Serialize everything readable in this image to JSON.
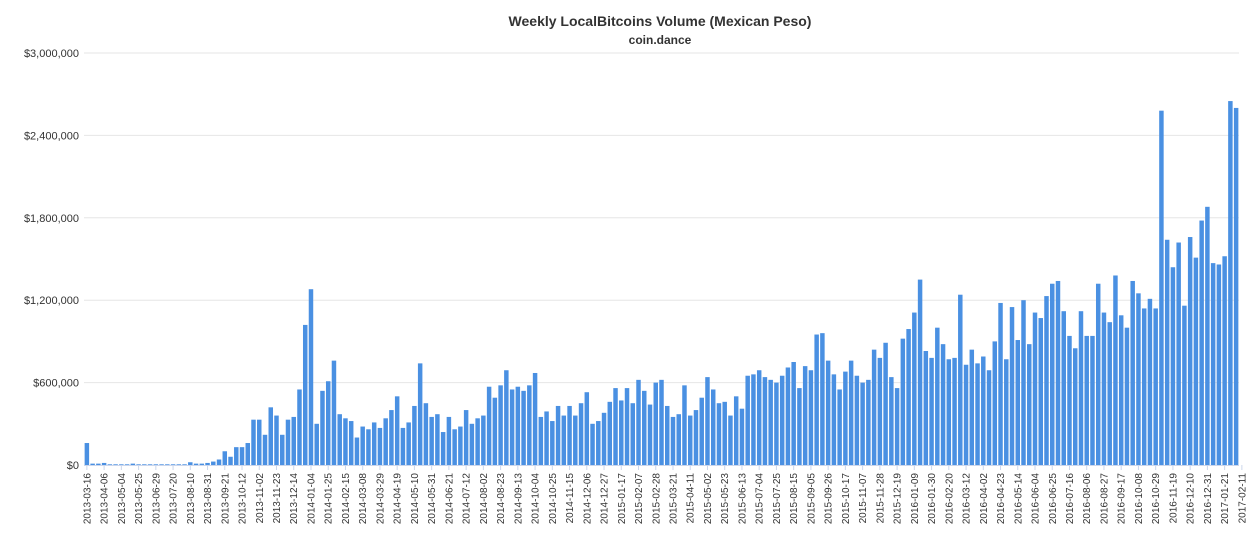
{
  "chart_data": {
    "type": "bar",
    "title": "Weekly LocalBitcoins Volume (Mexican Peso)",
    "subtitle": "coin.dance",
    "xlabel": "",
    "ylabel": "",
    "ylim": [
      0,
      3000000
    ],
    "yticks": [
      0,
      600000,
      1200000,
      1800000,
      2400000,
      3000000
    ],
    "ytick_labels": [
      "$0",
      "$600,000",
      "$1,200,000",
      "$1,800,000",
      "$2,400,000",
      "$3,000,000"
    ],
    "grid": true,
    "legend": "none",
    "bar_color": "#4a90e2",
    "start_date": "2013-03-16",
    "tick_labels": [
      "2013-03-16",
      "2013-04-06",
      "2013-05-04",
      "2013-05-25",
      "2013-06-29",
      "2013-07-20",
      "2013-08-10",
      "2013-08-31",
      "2013-09-21",
      "2013-10-12",
      "2013-11-02",
      "2013-11-23",
      "2013-12-14",
      "2014-01-04",
      "2014-01-25",
      "2014-02-15",
      "2014-03-08",
      "2014-03-29",
      "2014-04-19",
      "2014-05-10",
      "2014-05-31",
      "2014-06-21",
      "2014-07-12",
      "2014-08-02",
      "2014-08-23",
      "2014-09-13",
      "2014-10-04",
      "2014-10-25",
      "2014-11-15",
      "2014-12-06",
      "2014-12-27",
      "2015-01-17",
      "2015-02-07",
      "2015-02-28",
      "2015-03-21",
      "2015-04-11",
      "2015-05-02",
      "2015-05-23",
      "2015-06-13",
      "2015-07-04",
      "2015-07-25",
      "2015-08-15",
      "2015-09-05",
      "2015-09-26",
      "2015-10-17",
      "2015-11-07",
      "2015-11-28",
      "2015-12-19",
      "2016-01-09",
      "2016-01-30",
      "2016-02-20",
      "2016-03-12",
      "2016-04-02",
      "2016-04-23",
      "2016-05-14",
      "2016-06-04",
      "2016-06-25",
      "2016-07-16",
      "2016-08-06",
      "2016-08-27",
      "2016-09-17",
      "2016-10-08",
      "2016-10-29",
      "2016-11-19",
      "2016-12-10",
      "2016-12-31",
      "2017-01-21",
      "2017-02-11"
    ],
    "values": [
      160000,
      10000,
      10000,
      15000,
      5000,
      5000,
      5000,
      5000,
      10000,
      5000,
      5000,
      5000,
      5000,
      5000,
      5000,
      5000,
      5000,
      5000,
      20000,
      10000,
      10000,
      15000,
      25000,
      40000,
      100000,
      60000,
      130000,
      130000,
      160000,
      330000,
      330000,
      220000,
      420000,
      360000,
      220000,
      330000,
      350000,
      550000,
      1020000,
      1280000,
      300000,
      540000,
      610000,
      760000,
      370000,
      340000,
      320000,
      200000,
      280000,
      260000,
      310000,
      270000,
      340000,
      400000,
      500000,
      270000,
      310000,
      430000,
      740000,
      450000,
      350000,
      370000,
      240000,
      350000,
      260000,
      280000,
      400000,
      300000,
      340000,
      360000,
      570000,
      490000,
      580000,
      690000,
      550000,
      570000,
      540000,
      580000,
      670000,
      350000,
      390000,
      320000,
      430000,
      360000,
      430000,
      360000,
      450000,
      530000,
      300000,
      320000,
      380000,
      460000,
      560000,
      470000,
      560000,
      450000,
      620000,
      540000,
      440000,
      600000,
      620000,
      430000,
      350000,
      370000,
      580000,
      360000,
      400000,
      490000,
      640000,
      550000,
      450000,
      460000,
      360000,
      500000,
      410000,
      650000,
      660000,
      690000,
      640000,
      620000,
      600000,
      650000,
      710000,
      750000,
      560000,
      720000,
      690000,
      950000,
      960000,
      760000,
      660000,
      550000,
      680000,
      760000,
      650000,
      600000,
      620000,
      840000,
      780000,
      890000,
      640000,
      560000,
      920000,
      990000,
      1110000,
      1350000,
      830000,
      780000,
      1000000,
      880000,
      770000,
      780000,
      1240000,
      730000,
      840000,
      740000,
      790000,
      690000,
      900000,
      1180000,
      770000,
      1150000,
      910000,
      1200000,
      880000,
      1110000,
      1070000,
      1230000,
      1320000,
      1340000,
      1120000,
      940000,
      850000,
      1120000,
      940000,
      940000,
      1320000,
      1110000,
      1040000,
      1380000,
      1090000,
      1000000,
      1340000,
      1250000,
      1140000,
      1210000,
      1140000,
      2580000,
      1640000,
      1440000,
      1620000,
      1160000,
      1660000,
      1510000,
      1780000,
      1880000,
      1470000,
      1460000,
      1520000,
      2650000,
      2600000
    ]
  }
}
